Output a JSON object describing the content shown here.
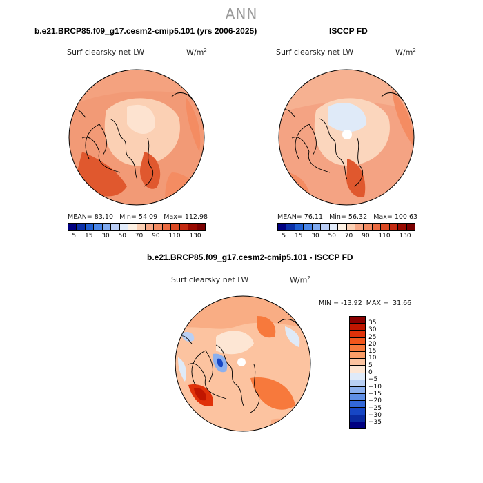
{
  "season": "ANN",
  "panels": [
    {
      "title": "b.e21.BRCP85.f09_g17.cesm2-cmip5.101 (yrs 2006-2025)",
      "variable": "Surf clearsky net LW",
      "units_base": "W/m",
      "units_exp": "2",
      "mean_label": "MEAN=",
      "mean_value": "83.10",
      "min_label": "Min=",
      "min_value": "54.09",
      "max_label": "Max=",
      "max_value": "112.98"
    },
    {
      "title": "ISCCP FD",
      "variable": "Surf clearsky net LW",
      "units_base": "W/m",
      "units_exp": "2",
      "mean_label": "MEAN=",
      "mean_value": "76.11",
      "min_label": "Min=",
      "min_value": "56.32",
      "max_label": "Max=",
      "max_value": "100.63"
    }
  ],
  "abs_colorbar": {
    "colors": [
      "#000080",
      "#0a2fa8",
      "#1f5ed1",
      "#4a86e8",
      "#7faaf0",
      "#b9cdf5",
      "#e2ecfb",
      "#fdf1e4",
      "#fbd0b4",
      "#f7a886",
      "#f28a61",
      "#ea6a40",
      "#dc4a24",
      "#c42a10",
      "#990a00",
      "#7a0000"
    ],
    "labels": [
      "5",
      "15",
      "30",
      "50",
      "70",
      "90",
      "110",
      "130"
    ]
  },
  "diff": {
    "title": "b.e21.BRCP85.f09_g17.cesm2-cmip5.101 - ISCCP FD",
    "variable": "Surf clearsky net LW",
    "units_base": "W/m",
    "units_exp": "2",
    "min_label": "MIN =",
    "min_value": "-13.92",
    "max_label": "MAX =",
    "max_value": "31.66",
    "colors": [
      "#8a0000",
      "#c01600",
      "#e0320a",
      "#f2561c",
      "#f7793c",
      "#fa9d68",
      "#fcc3a0",
      "#fde6d4",
      "#dfeaf8",
      "#b8cff4",
      "#8cb0ee",
      "#5f8fe6",
      "#3368d9",
      "#1746c4",
      "#0a2aa0",
      "#000080"
    ],
    "labels": [
      "35",
      "30",
      "25",
      "20",
      "15",
      "10",
      "5",
      "0",
      "−5",
      "−10",
      "−15",
      "−20",
      "−25",
      "−30",
      "−35"
    ]
  }
}
